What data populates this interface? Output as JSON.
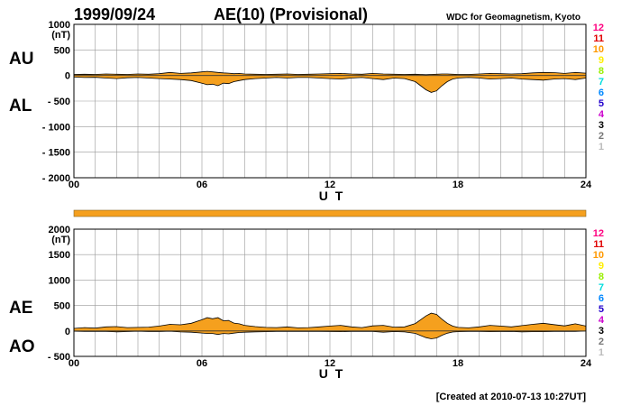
{
  "header": {
    "date": "1999/09/24",
    "title": "AE(10) (Provisional)",
    "credit": "WDC for Geomagnetism, Kyoto"
  },
  "footer": {
    "created": "[Created at 2010-07-13 10:27UT]"
  },
  "colors": {
    "fill": "#f5a01e",
    "line": "#000000",
    "grid": "#999999",
    "coverage_bar": "#f5a01e"
  },
  "station_legend": [
    {
      "label": "12",
      "color": "#ff0080"
    },
    {
      "label": "11",
      "color": "#e00000"
    },
    {
      "label": "10",
      "color": "#ff9900"
    },
    {
      "label": "9",
      "color": "#ffee00"
    },
    {
      "label": "8",
      "color": "#99ee00"
    },
    {
      "label": "7",
      "color": "#00dddd"
    },
    {
      "label": "6",
      "color": "#0088ff"
    },
    {
      "label": "5",
      "color": "#2200cc"
    },
    {
      "label": "4",
      "color": "#cc00cc"
    },
    {
      "label": "3",
      "color": "#000000"
    },
    {
      "label": "2",
      "color": "#777777"
    },
    {
      "label": "1",
      "color": "#bbbbbb"
    }
  ],
  "chart_data": [
    {
      "type": "area",
      "panel": "top",
      "unit": "(nT)",
      "xlabel": "U T",
      "upper_label": "AU",
      "lower_label": "AL",
      "xlim": [
        0,
        24
      ],
      "ylim": [
        -2000,
        1000
      ],
      "xticks": [
        0,
        6,
        12,
        18,
        24
      ],
      "xtick_labels": [
        "00",
        "06",
        "12",
        "18",
        "24"
      ],
      "yticks": [
        1000,
        500,
        0,
        -500,
        -1000,
        -1500,
        -2000
      ],
      "ytick_labels": [
        "1000",
        "500",
        "0",
        "- 500",
        "- 1000",
        "- 1500",
        "- 2000"
      ],
      "grid": true,
      "x": [
        0,
        0.5,
        1,
        1.5,
        2,
        2.5,
        3,
        3.5,
        4,
        4.5,
        5,
        5.5,
        6,
        6.25,
        6.5,
        6.75,
        7,
        7.25,
        7.5,
        7.75,
        8,
        8.5,
        9,
        9.5,
        10,
        10.5,
        11,
        11.5,
        12,
        12.5,
        13,
        13.5,
        14,
        14.5,
        15,
        15.5,
        16,
        16.25,
        16.5,
        16.75,
        17,
        17.25,
        17.5,
        17.75,
        18,
        18.5,
        19,
        19.5,
        20,
        20.5,
        21,
        21.5,
        22,
        22.5,
        23,
        23.5,
        24
      ],
      "series": [
        {
          "name": "AU",
          "values": [
            20,
            25,
            20,
            30,
            25,
            20,
            30,
            25,
            35,
            60,
            40,
            50,
            70,
            80,
            70,
            60,
            50,
            45,
            35,
            40,
            30,
            25,
            20,
            25,
            30,
            20,
            25,
            30,
            35,
            40,
            30,
            25,
            40,
            30,
            25,
            20,
            25,
            20,
            15,
            20,
            25,
            30,
            30,
            25,
            20,
            20,
            30,
            40,
            35,
            30,
            35,
            50,
            60,
            55,
            40,
            60,
            45
          ]
        },
        {
          "name": "AL",
          "values": [
            -30,
            -40,
            -35,
            -50,
            -60,
            -45,
            -40,
            -50,
            -60,
            -70,
            -80,
            -100,
            -150,
            -180,
            -170,
            -200,
            -150,
            -160,
            -120,
            -100,
            -80,
            -60,
            -50,
            -40,
            -50,
            -40,
            -40,
            -50,
            -60,
            -70,
            -50,
            -40,
            -60,
            -80,
            -50,
            -60,
            -120,
            -200,
            -280,
            -330,
            -300,
            -200,
            -120,
            -70,
            -50,
            -40,
            -50,
            -70,
            -60,
            -50,
            -70,
            -80,
            -90,
            -70,
            -60,
            -80,
            -50
          ]
        }
      ]
    },
    {
      "type": "area",
      "panel": "bottom",
      "unit": "(nT)",
      "xlabel": "U T",
      "upper_label": "AE",
      "lower_label": "AO",
      "xlim": [
        0,
        24
      ],
      "ylim": [
        -500,
        2000
      ],
      "xticks": [
        0,
        6,
        12,
        18,
        24
      ],
      "xtick_labels": [
        "00",
        "06",
        "12",
        "18",
        "24"
      ],
      "yticks": [
        2000,
        1500,
        1000,
        500,
        0,
        -500
      ],
      "ytick_labels": [
        "2000",
        "1500",
        "1000",
        "500",
        "0",
        "- 500"
      ],
      "grid": true,
      "x": [
        0,
        0.5,
        1,
        1.5,
        2,
        2.5,
        3,
        3.5,
        4,
        4.5,
        5,
        5.5,
        6,
        6.25,
        6.5,
        6.75,
        7,
        7.25,
        7.5,
        7.75,
        8,
        8.5,
        9,
        9.5,
        10,
        10.5,
        11,
        11.5,
        12,
        12.5,
        13,
        13.5,
        14,
        14.5,
        15,
        15.5,
        16,
        16.25,
        16.5,
        16.75,
        17,
        17.25,
        17.5,
        17.75,
        18,
        18.5,
        19,
        19.5,
        20,
        20.5,
        21,
        21.5,
        22,
        22.5,
        23,
        23.5,
        24
      ],
      "series": [
        {
          "name": "AE",
          "values": [
            50,
            65,
            55,
            80,
            85,
            65,
            70,
            75,
            95,
            130,
            120,
            150,
            220,
            260,
            240,
            260,
            200,
            205,
            155,
            140,
            110,
            85,
            70,
            65,
            80,
            60,
            65,
            80,
            95,
            110,
            80,
            65,
            100,
            110,
            75,
            80,
            145,
            220,
            295,
            350,
            325,
            230,
            150,
            95,
            70,
            60,
            80,
            110,
            95,
            80,
            105,
            130,
            150,
            125,
            100,
            140,
            95
          ]
        },
        {
          "name": "AO",
          "values": [
            -5,
            -8,
            -8,
            -10,
            -18,
            -12,
            -5,
            -12,
            -12,
            -5,
            -20,
            -25,
            -40,
            -50,
            -50,
            -70,
            -50,
            -57,
            -42,
            -30,
            -25,
            -18,
            -15,
            -8,
            -10,
            -10,
            -8,
            -10,
            -12,
            -15,
            -10,
            -8,
            -10,
            -25,
            -12,
            -20,
            -48,
            -90,
            -132,
            -155,
            -138,
            -85,
            -45,
            -22,
            -15,
            -10,
            -10,
            -15,
            -12,
            -10,
            -18,
            -15,
            -15,
            -8,
            -10,
            -10,
            -2
          ]
        }
      ]
    }
  ]
}
